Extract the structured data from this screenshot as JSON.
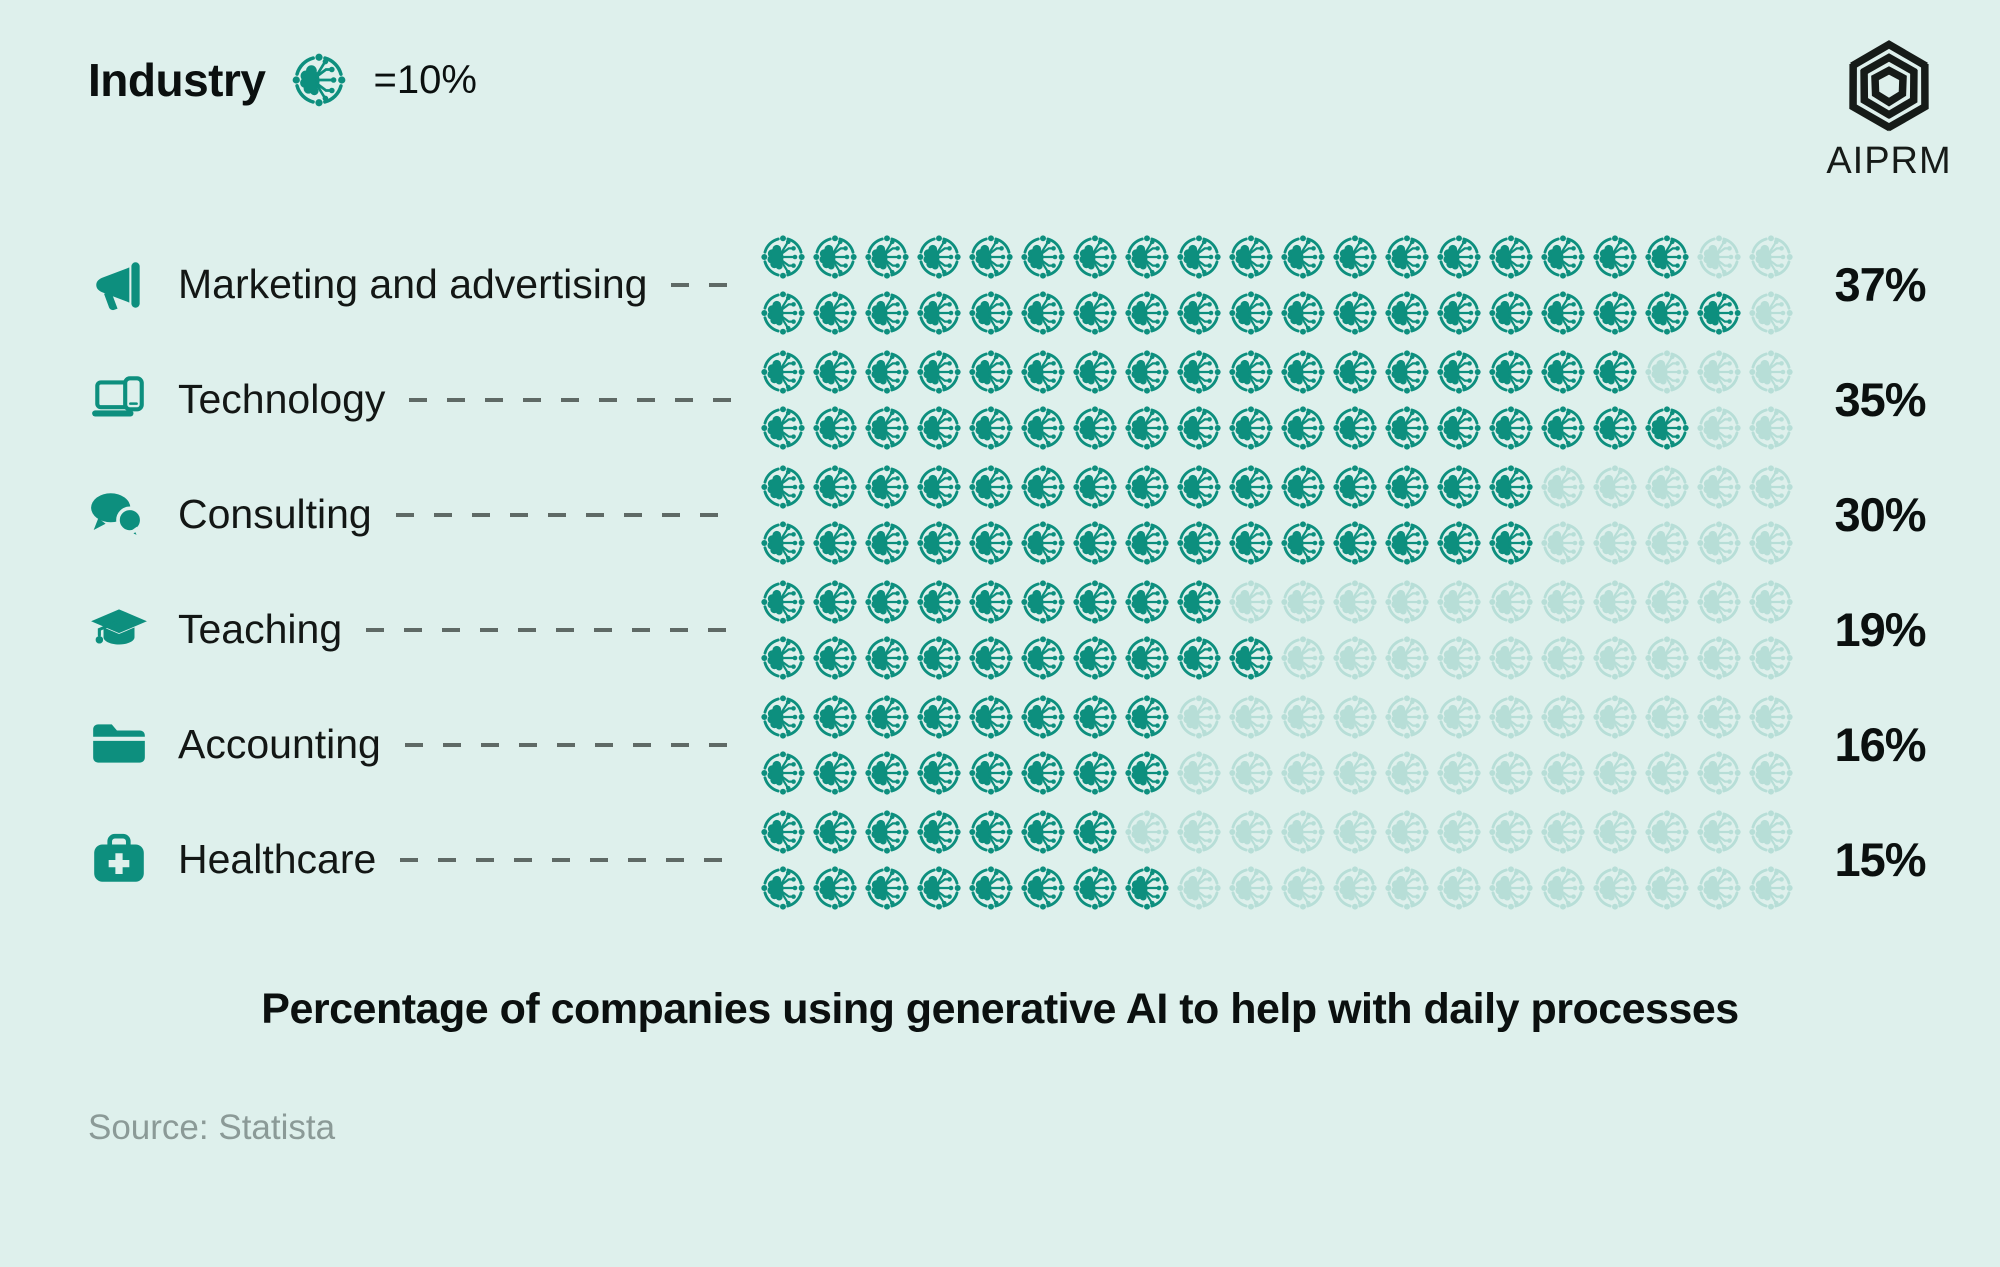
{
  "header": {
    "legend_title": "Industry",
    "legend_icon": "ai-brain-icon",
    "legend_unit": "=10%",
    "logo_icon": "aiprm-logo-icon",
    "logo_text": "AIPRM"
  },
  "chart_data": {
    "type": "pictogram",
    "title": "Percentage of companies using generative AI to help with daily processes",
    "legend_unit_label": "=10%",
    "legend_position": "top-left",
    "icon": "ai-brain-icon",
    "icons_per_row": 20,
    "rows_per_category": 2,
    "fill_order": "top row gets floor(value/2), bottom row gets ceil(value/2)",
    "categories": [
      "Marketing and advertising",
      "Technology",
      "Consulting",
      "Teaching",
      "Accounting",
      "Healthcare"
    ],
    "values": [
      37,
      35,
      30,
      19,
      16,
      15
    ],
    "value_labels": [
      "37%",
      "35%",
      "30%",
      "19%",
      "16%",
      "15%"
    ],
    "category_icons": [
      "megaphone-icon",
      "laptop-icon",
      "chat-bubbles-icon",
      "graduation-cap-icon",
      "folder-icon",
      "medical-bag-icon"
    ],
    "value_suffix": "%"
  },
  "footer": {
    "source": "Source: Statista"
  },
  "colors": {
    "background": "#def0ec",
    "accent_teal": "#0d8f7e",
    "faded_icon_opacity": "0.18",
    "text_dark": "#0b100f",
    "dash_gray": "#5f6a66",
    "source_gray": "#8b9a97",
    "logo_black": "#161b18"
  }
}
